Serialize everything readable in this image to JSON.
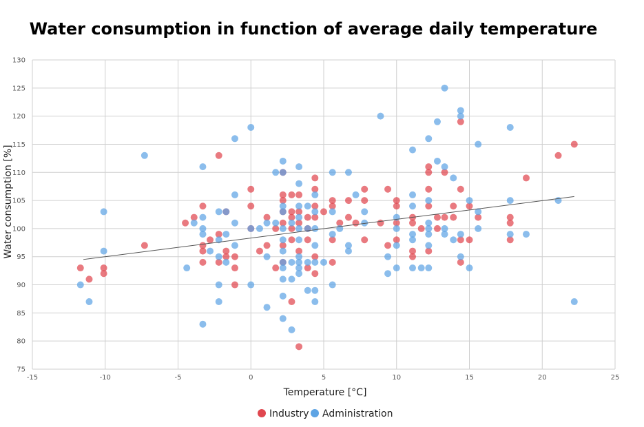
{
  "chart_data": {
    "type": "scatter",
    "title": "Water consumption in function of average daily temperature",
    "xlabel": "Temperature [°C]",
    "ylabel": "Water consumption [%]",
    "xlim": [
      -15,
      25
    ],
    "ylim": [
      75,
      130
    ],
    "xticks": [
      -15,
      -10,
      -5,
      0,
      5,
      10,
      15,
      20,
      25
    ],
    "yticks": [
      75,
      80,
      85,
      90,
      95,
      100,
      105,
      110,
      115,
      120,
      125,
      130
    ],
    "grid": true,
    "legend": "bottom-center",
    "trendline": {
      "x": [
        -11.5,
        22.2
      ],
      "y": [
        94.5,
        105.7
      ]
    },
    "series": [
      {
        "name": "Industry",
        "color": "#e0474f",
        "points": [
          [
            -11.7,
            93
          ],
          [
            -11.1,
            91
          ],
          [
            -10.1,
            93
          ],
          [
            -10.1,
            92
          ],
          [
            -7.3,
            97
          ],
          [
            -4.5,
            101
          ],
          [
            -3.9,
            102
          ],
          [
            -3.3,
            104
          ],
          [
            -3.3,
            97
          ],
          [
            -3.3,
            96
          ],
          [
            -3.3,
            94
          ],
          [
            -2.8,
            98
          ],
          [
            -2.2,
            113
          ],
          [
            -2.2,
            99
          ],
          [
            -2.2,
            94
          ],
          [
            -1.7,
            96
          ],
          [
            -1.7,
            95
          ],
          [
            -1.7,
            103
          ],
          [
            -1.1,
            95
          ],
          [
            -1.1,
            93
          ],
          [
            -1.1,
            90
          ],
          [
            0,
            107
          ],
          [
            0,
            104
          ],
          [
            0,
            100
          ],
          [
            0.6,
            96
          ],
          [
            1.1,
            102
          ],
          [
            1.1,
            97
          ],
          [
            1.7,
            100
          ],
          [
            1.7,
            93
          ],
          [
            2.2,
            110
          ],
          [
            2.2,
            106
          ],
          [
            2.2,
            105
          ],
          [
            2.2,
            103
          ],
          [
            2.2,
            101
          ],
          [
            2.2,
            97
          ],
          [
            2.2,
            94
          ],
          [
            2.8,
            106
          ],
          [
            2.8,
            103
          ],
          [
            2.8,
            102
          ],
          [
            2.8,
            100
          ],
          [
            2.8,
            98
          ],
          [
            2.8,
            87
          ],
          [
            3.3,
            106
          ],
          [
            3.3,
            103
          ],
          [
            3.3,
            101
          ],
          [
            3.3,
            96
          ],
          [
            3.3,
            79
          ],
          [
            3.9,
            102
          ],
          [
            3.9,
            100
          ],
          [
            3.9,
            98
          ],
          [
            3.9,
            93
          ],
          [
            4.4,
            109
          ],
          [
            4.4,
            107
          ],
          [
            4.4,
            104
          ],
          [
            4.4,
            102
          ],
          [
            4.4,
            95
          ],
          [
            4.4,
            92
          ],
          [
            5,
            103
          ],
          [
            5.6,
            105
          ],
          [
            5.6,
            104
          ],
          [
            5.6,
            98
          ],
          [
            5.6,
            94
          ],
          [
            6.1,
            101
          ],
          [
            6.7,
            105
          ],
          [
            6.7,
            102
          ],
          [
            7.2,
            101
          ],
          [
            7.8,
            107
          ],
          [
            7.8,
            105
          ],
          [
            7.8,
            98
          ],
          [
            8.9,
            101
          ],
          [
            9.4,
            107
          ],
          [
            9.4,
            97
          ],
          [
            10,
            105
          ],
          [
            10,
            104
          ],
          [
            10,
            101
          ],
          [
            10,
            98
          ],
          [
            11.1,
            102
          ],
          [
            11.1,
            101
          ],
          [
            11.1,
            96
          ],
          [
            11.1,
            95
          ],
          [
            11.7,
            100
          ],
          [
            12.2,
            111
          ],
          [
            12.2,
            110
          ],
          [
            12.2,
            107
          ],
          [
            12.2,
            104
          ],
          [
            12.2,
            96
          ],
          [
            12.8,
            102
          ],
          [
            12.8,
            100
          ],
          [
            13.3,
            110
          ],
          [
            13.3,
            102
          ],
          [
            13.9,
            104
          ],
          [
            13.9,
            102
          ],
          [
            14.4,
            119
          ],
          [
            14.4,
            107
          ],
          [
            14.4,
            98
          ],
          [
            14.4,
            94
          ],
          [
            15,
            104
          ],
          [
            15,
            98
          ],
          [
            15.6,
            102
          ],
          [
            17.8,
            102
          ],
          [
            17.8,
            101
          ],
          [
            17.8,
            98
          ],
          [
            18.9,
            109
          ],
          [
            21.1,
            113
          ],
          [
            22.2,
            115
          ]
        ]
      },
      {
        "name": "Administration",
        "color": "#5ea4e4",
        "points": [
          [
            -11.7,
            90
          ],
          [
            -11.1,
            87
          ],
          [
            -10.1,
            103
          ],
          [
            -10.1,
            96
          ],
          [
            -7.3,
            113
          ],
          [
            -4.4,
            93
          ],
          [
            -3.9,
            101
          ],
          [
            -3.3,
            111
          ],
          [
            -3.3,
            102
          ],
          [
            -3.3,
            100
          ],
          [
            -3.3,
            99
          ],
          [
            -3.3,
            83
          ],
          [
            -2.8,
            96
          ],
          [
            -2.2,
            103
          ],
          [
            -2.2,
            98
          ],
          [
            -2.2,
            95
          ],
          [
            -2.2,
            90
          ],
          [
            -2.2,
            87
          ],
          [
            -1.7,
            103
          ],
          [
            -1.7,
            99
          ],
          [
            -1.7,
            94
          ],
          [
            -1.1,
            116
          ],
          [
            -1.1,
            106
          ],
          [
            -1.1,
            101
          ],
          [
            -1.1,
            97
          ],
          [
            0,
            118
          ],
          [
            0,
            100
          ],
          [
            0,
            90
          ],
          [
            0.6,
            100
          ],
          [
            1.1,
            101
          ],
          [
            1.1,
            95
          ],
          [
            1.1,
            86
          ],
          [
            1.7,
            110
          ],
          [
            1.7,
            101
          ],
          [
            2.2,
            112
          ],
          [
            2.2,
            110
          ],
          [
            2.2,
            104
          ],
          [
            2.2,
            103
          ],
          [
            2.2,
            100
          ],
          [
            2.2,
            98
          ],
          [
            2.2,
            96
          ],
          [
            2.2,
            94
          ],
          [
            2.2,
            93
          ],
          [
            2.2,
            91
          ],
          [
            2.2,
            88
          ],
          [
            2.2,
            84
          ],
          [
            2.8,
            101
          ],
          [
            2.8,
            94
          ],
          [
            2.8,
            91
          ],
          [
            2.8,
            82
          ],
          [
            3.3,
            111
          ],
          [
            3.3,
            108
          ],
          [
            3.3,
            104
          ],
          [
            3.3,
            102
          ],
          [
            3.3,
            100
          ],
          [
            3.3,
            98
          ],
          [
            3.3,
            95
          ],
          [
            3.3,
            94
          ],
          [
            3.3,
            93
          ],
          [
            3.3,
            92
          ],
          [
            3.9,
            104
          ],
          [
            3.9,
            100
          ],
          [
            3.9,
            94
          ],
          [
            3.9,
            89
          ],
          [
            4.4,
            106
          ],
          [
            4.4,
            103
          ],
          [
            4.4,
            100
          ],
          [
            4.4,
            97
          ],
          [
            4.4,
            94
          ],
          [
            4.4,
            89
          ],
          [
            4.4,
            87
          ],
          [
            5,
            94
          ],
          [
            5.6,
            110
          ],
          [
            5.6,
            103
          ],
          [
            5.6,
            99
          ],
          [
            5.6,
            90
          ],
          [
            6.1,
            100
          ],
          [
            6.7,
            110
          ],
          [
            6.7,
            97
          ],
          [
            6.7,
            96
          ],
          [
            7.2,
            106
          ],
          [
            7.8,
            103
          ],
          [
            7.8,
            101
          ],
          [
            8.9,
            120
          ],
          [
            9.4,
            95
          ],
          [
            9.4,
            92
          ],
          [
            10,
            102
          ],
          [
            10,
            100
          ],
          [
            10,
            97
          ],
          [
            10,
            93
          ],
          [
            11.1,
            114
          ],
          [
            11.1,
            106
          ],
          [
            11.1,
            104
          ],
          [
            11.1,
            99
          ],
          [
            11.1,
            98
          ],
          [
            11.1,
            93
          ],
          [
            11.7,
            93
          ],
          [
            12.2,
            116
          ],
          [
            12.2,
            105
          ],
          [
            12.2,
            101
          ],
          [
            12.2,
            100
          ],
          [
            12.2,
            99
          ],
          [
            12.2,
            97
          ],
          [
            12.2,
            93
          ],
          [
            12.8,
            119
          ],
          [
            12.8,
            112
          ],
          [
            13.3,
            125
          ],
          [
            13.3,
            111
          ],
          [
            13.3,
            100
          ],
          [
            13.3,
            99
          ],
          [
            13.9,
            109
          ],
          [
            13.9,
            98
          ],
          [
            14.4,
            121
          ],
          [
            14.4,
            120
          ],
          [
            14.4,
            99
          ],
          [
            14.4,
            95
          ],
          [
            15,
            105
          ],
          [
            15,
            93
          ],
          [
            15.6,
            115
          ],
          [
            15.6,
            103
          ],
          [
            15.6,
            100
          ],
          [
            17.8,
            118
          ],
          [
            17.8,
            105
          ],
          [
            17.8,
            99
          ],
          [
            18.9,
            99
          ],
          [
            21.1,
            105
          ],
          [
            22.2,
            87
          ]
        ]
      }
    ]
  }
}
